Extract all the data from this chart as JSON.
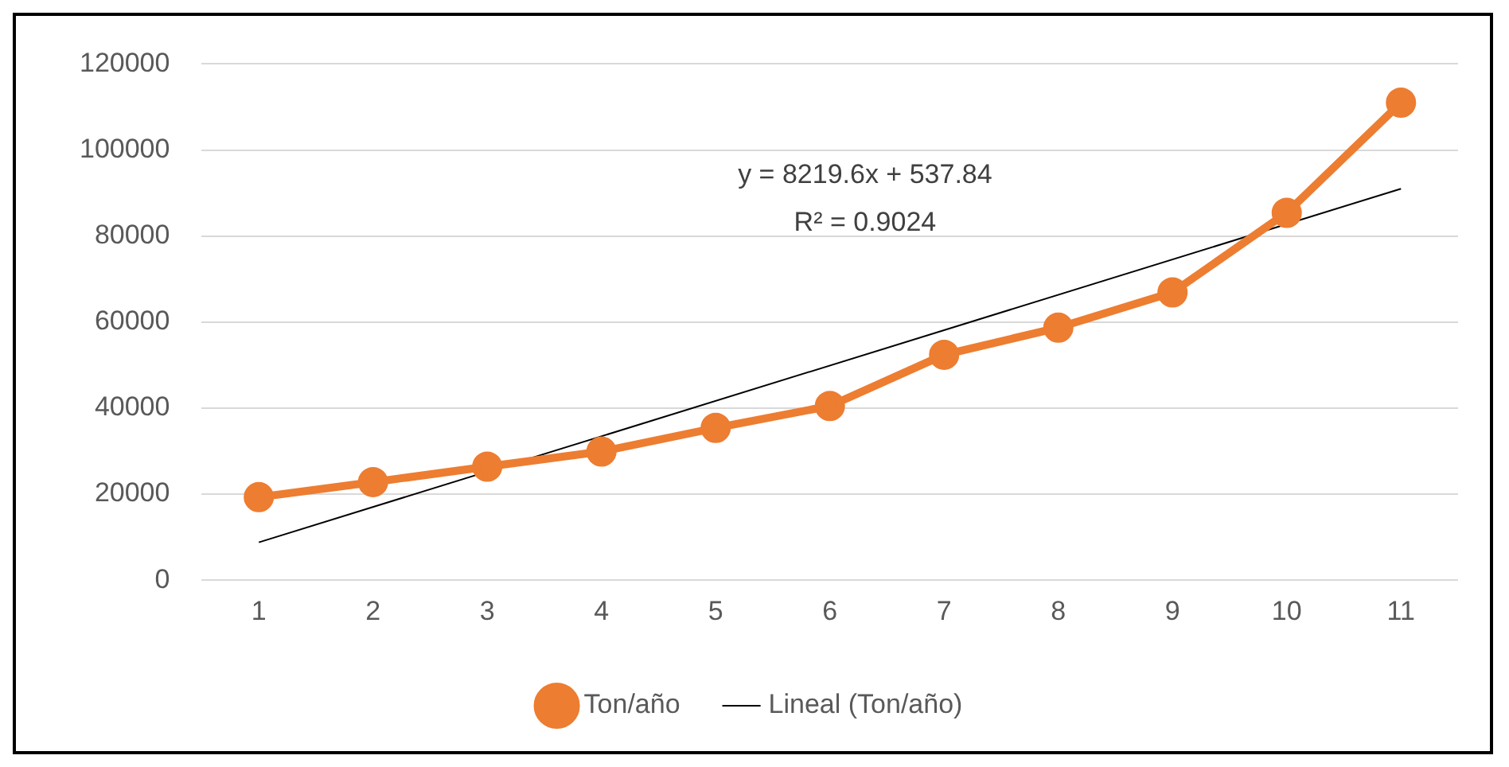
{
  "chart_data": {
    "type": "line",
    "x": [
      1,
      2,
      3,
      4,
      5,
      6,
      7,
      8,
      9,
      10,
      11
    ],
    "xlim": [
      0.5,
      11.5
    ],
    "xticks": [
      1,
      2,
      3,
      4,
      5,
      6,
      7,
      8,
      9,
      10,
      11
    ],
    "ylim": [
      0,
      120000
    ],
    "yticks": [
      0,
      20000,
      40000,
      60000,
      80000,
      100000,
      120000
    ],
    "grid": "y",
    "legend": "bottom",
    "series": [
      {
        "name": "Ton/año",
        "color": "#ed7d31",
        "marker": "circle",
        "values": [
          19300,
          22800,
          26400,
          29900,
          35400,
          40500,
          52400,
          58700,
          66900,
          85400,
          111000
        ]
      },
      {
        "name": "Lineal (Ton/año)",
        "color": "#000000",
        "marker": "none",
        "line_style": "solid",
        "x": [
          1,
          11
        ],
        "values": [
          8800,
          91000
        ]
      }
    ],
    "annotations": [
      "y = 8219.6x + 537.84",
      "R² = 0.9024"
    ]
  }
}
